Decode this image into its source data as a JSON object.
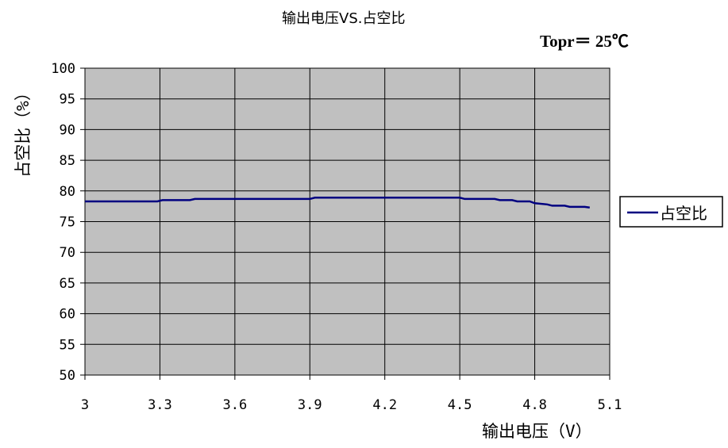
{
  "chart_data": {
    "type": "line",
    "title": "输出电压VS.占空比",
    "condition": "Topr＝ 25℃",
    "xlabel": "输出电压（V）",
    "ylabel": "占空比（%）",
    "xlim": [
      3,
      5.1
    ],
    "ylim": [
      50,
      100
    ],
    "x_ticks": [
      "3",
      "3.3",
      "3.6",
      "3.9",
      "4.2",
      "4.5",
      "4.8",
      "5.1"
    ],
    "y_ticks": [
      "50",
      "55",
      "60",
      "65",
      "70",
      "75",
      "80",
      "85",
      "90",
      "95",
      "100"
    ],
    "grid": true,
    "legend_position": "right",
    "colors": {
      "line": "#000080",
      "plot_bg": "#c0c0c0"
    },
    "series": [
      {
        "name": "占空比",
        "x": [
          3.0,
          3.29,
          3.31,
          3.42,
          3.44,
          3.9,
          3.92,
          4.5,
          4.52,
          4.64,
          4.66,
          4.71,
          4.73,
          4.78,
          4.8,
          4.85,
          4.87,
          4.92,
          4.94,
          5.0,
          5.02
        ],
        "y": [
          78.3,
          78.3,
          78.5,
          78.5,
          78.7,
          78.7,
          78.9,
          78.9,
          78.7,
          78.7,
          78.5,
          78.5,
          78.3,
          78.3,
          78.0,
          77.8,
          77.6,
          77.6,
          77.4,
          77.4,
          77.3
        ]
      }
    ]
  }
}
